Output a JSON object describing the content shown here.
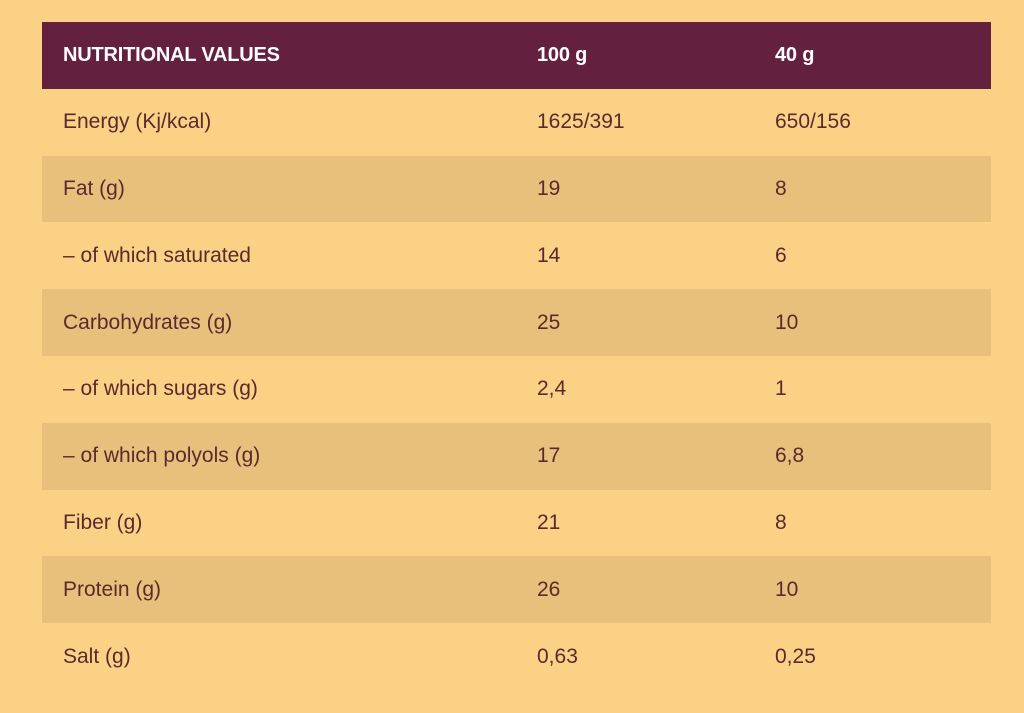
{
  "table": {
    "headers": [
      "NUTRITIONAL VALUES",
      "100 g",
      "40 g"
    ],
    "rows": [
      [
        "Energy (Kj/kcal)",
        "1625/391",
        "650/156"
      ],
      [
        "Fat (g)",
        "19",
        "8"
      ],
      [
        "– of which saturated",
        "14",
        "6"
      ],
      [
        "Carbohydrates (g)",
        "25",
        "10"
      ],
      [
        "– of which sugars (g)",
        "2,4",
        "1"
      ],
      [
        "– of which polyols (g)",
        "17",
        "6,8"
      ],
      [
        "Fiber (g)",
        "21",
        "8"
      ],
      [
        "Protein (g)",
        "26",
        "10"
      ],
      [
        "Salt (g)",
        "0,63",
        "0,25"
      ]
    ]
  },
  "colors": {
    "background": "#fbd185",
    "header_background": "#64213f",
    "header_text": "#ffffff",
    "stripe_row": "#e9c07b",
    "body_text": "#5a2a2e"
  }
}
